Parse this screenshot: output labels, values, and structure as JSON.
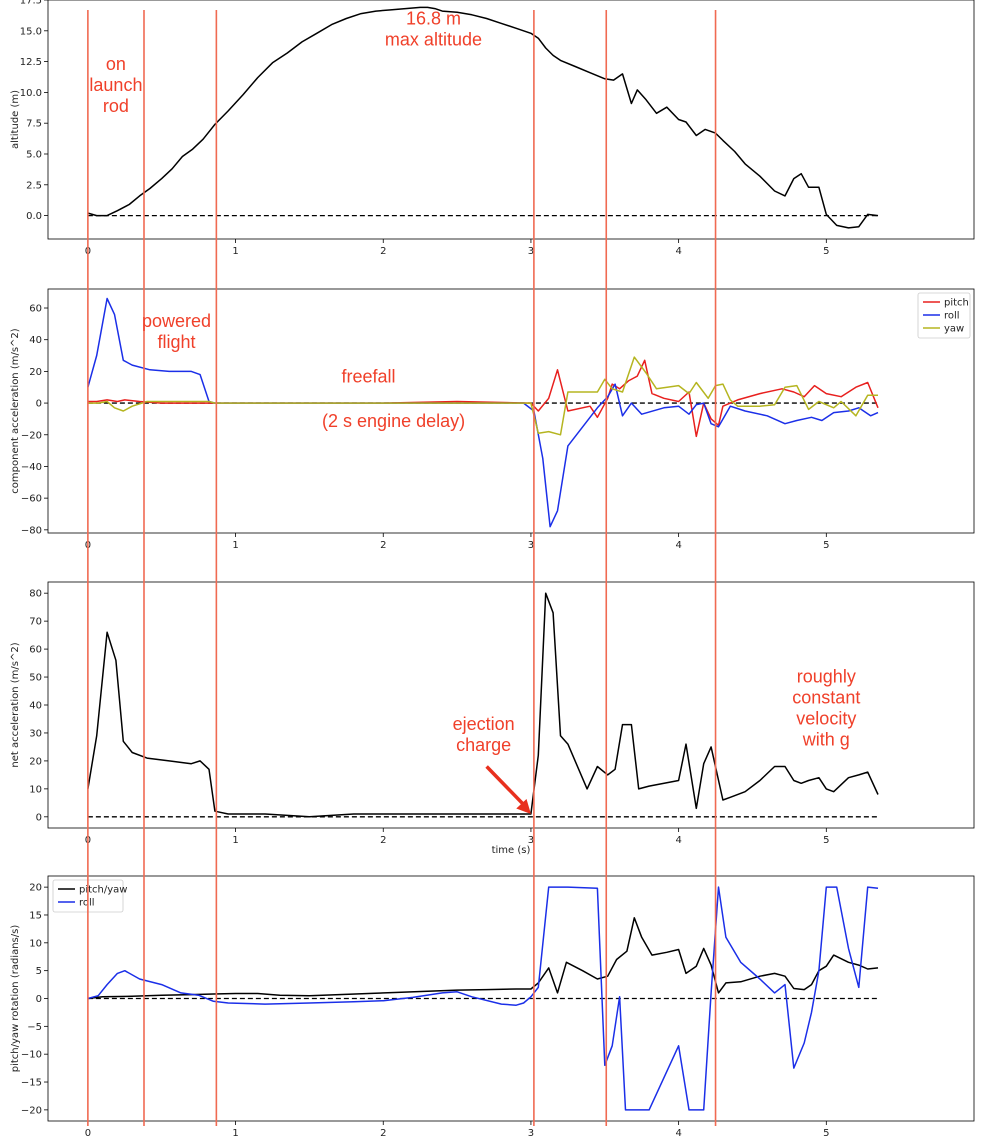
{
  "chart_data": [
    {
      "type": "line",
      "ylabel": "altitude (m)",
      "xlabel": "",
      "xlim": [
        -0.27,
        6.0
      ],
      "ylim": [
        -1.9,
        17.5
      ],
      "xticks": [
        "0",
        "1",
        "2",
        "3",
        "4",
        "5"
      ],
      "yticks": [
        "0.0",
        "2.5",
        "5.0",
        "7.5",
        "10.0",
        "12.5",
        "15.0",
        "17.5"
      ],
      "yticks_values": [
        0,
        2.5,
        5,
        7.5,
        10,
        12.5,
        15,
        17.5
      ],
      "series": [
        {
          "color": "#000000",
          "x": [
            0,
            0.06,
            0.13,
            0.2,
            0.28,
            0.35,
            0.42,
            0.5,
            0.57,
            0.64,
            0.71,
            0.78,
            0.86,
            0.95,
            1.05,
            1.15,
            1.25,
            1.35,
            1.45,
            1.55,
            1.65,
            1.75,
            1.85,
            1.95,
            2.05,
            2.15,
            2.25,
            2.3,
            2.35,
            2.4,
            2.5,
            2.6,
            2.7,
            2.8,
            2.9,
            3.0,
            3.05,
            3.1,
            3.15,
            3.2,
            3.3,
            3.4,
            3.5,
            3.56,
            3.62,
            3.68,
            3.72,
            3.78,
            3.85,
            3.92,
            4.0,
            4.05,
            4.12,
            4.18,
            4.25,
            4.3,
            4.38,
            4.45,
            4.55,
            4.65,
            4.72,
            4.78,
            4.83,
            4.88,
            4.95,
            5.0,
            5.07,
            5.15,
            5.22,
            5.28,
            5.35
          ],
          "y": [
            0.2,
            0.0,
            0.0,
            0.4,
            0.9,
            1.6,
            2.2,
            3.0,
            3.8,
            4.8,
            5.4,
            6.2,
            7.4,
            8.5,
            9.8,
            11.2,
            12.4,
            13.2,
            14.1,
            14.8,
            15.5,
            16.0,
            16.4,
            16.6,
            16.7,
            16.8,
            16.9,
            16.9,
            16.8,
            16.6,
            16.5,
            16.3,
            16.0,
            15.6,
            15.2,
            14.8,
            14.4,
            13.6,
            13.0,
            12.6,
            12.1,
            11.6,
            11.1,
            11.0,
            11.5,
            9.1,
            10.2,
            9.4,
            8.3,
            8.8,
            7.8,
            7.6,
            6.5,
            7.0,
            6.7,
            6.1,
            5.2,
            4.2,
            3.2,
            2.0,
            1.6,
            3.0,
            3.4,
            2.3,
            2.3,
            0.1,
            -0.8,
            -1.0,
            -0.9,
            0.1,
            0.0
          ]
        }
      ],
      "hline_y": 0,
      "annotations": [
        {
          "lines": [
            "on",
            "launch",
            "rod"
          ],
          "x": 0.19,
          "y": 11.8
        },
        {
          "lines": [
            "16.8 m",
            "max altitude"
          ],
          "x": 2.34,
          "y": 15.5
        }
      ]
    },
    {
      "type": "line",
      "ylabel": "component acceleration (m/s^2)",
      "xlabel": "",
      "xlim": [
        -0.27,
        6.0
      ],
      "ylim": [
        -82,
        72
      ],
      "xticks": [
        "0",
        "1",
        "2",
        "3",
        "4",
        "5"
      ],
      "yticks": [
        "−80",
        "−60",
        "−40",
        "−20",
        "0",
        "20",
        "40",
        "60"
      ],
      "yticks_values": [
        -80,
        -60,
        -40,
        -20,
        0,
        20,
        40,
        60
      ],
      "legend": {
        "location": "upper right",
        "entries": [
          "pitch",
          "roll",
          "yaw"
        ]
      },
      "series": [
        {
          "name": "pitch",
          "color": "#e8201e",
          "x": [
            0,
            0.06,
            0.13,
            0.2,
            0.25,
            0.35,
            0.5,
            0.7,
            0.82,
            0.86,
            1.0,
            1.5,
            2.0,
            2.5,
            3.0,
            3.05,
            3.12,
            3.18,
            3.25,
            3.4,
            3.45,
            3.52,
            3.55,
            3.6,
            3.66,
            3.72,
            3.77,
            3.82,
            3.9,
            4.0,
            4.07,
            4.12,
            4.17,
            4.22,
            4.27,
            4.3,
            4.4,
            4.55,
            4.7,
            4.78,
            4.85,
            4.92,
            5.0,
            5.1,
            5.2,
            5.28,
            5.35
          ],
          "y": [
            1,
            1,
            2,
            1,
            2,
            1,
            0,
            0,
            0,
            0,
            0,
            0,
            0,
            1,
            0,
            -5,
            3,
            21,
            -5,
            -2,
            -9,
            3,
            12,
            9,
            14,
            17,
            27,
            6,
            3,
            1,
            7,
            -21,
            0,
            -10,
            -14,
            -2,
            2,
            6,
            9,
            7,
            4,
            11,
            6,
            4,
            10,
            13,
            -3
          ]
        },
        {
          "name": "roll",
          "color": "#1b2fe8",
          "x": [
            0,
            0.06,
            0.13,
            0.18,
            0.24,
            0.3,
            0.42,
            0.55,
            0.7,
            0.76,
            0.82,
            0.86,
            1.0,
            1.5,
            2.0,
            2.5,
            2.95,
            3.02,
            3.08,
            3.13,
            3.18,
            3.25,
            3.45,
            3.52,
            3.57,
            3.62,
            3.68,
            3.75,
            3.9,
            4.0,
            4.07,
            4.12,
            4.17,
            4.22,
            4.27,
            4.35,
            4.45,
            4.6,
            4.72,
            4.8,
            4.9,
            4.97,
            5.05,
            5.15,
            5.22,
            5.3,
            5.35
          ],
          "y": [
            10,
            30,
            66,
            56,
            27,
            24,
            21,
            20,
            20,
            18,
            1,
            0,
            0,
            0,
            0,
            0,
            0,
            -5,
            -35,
            -78,
            -68,
            -27,
            -3,
            4,
            12,
            -8,
            0,
            -7,
            -3,
            -2,
            -7,
            -1,
            0,
            -13,
            -15,
            -2,
            -5,
            -8,
            -13,
            -11,
            -9,
            -11,
            -6,
            -5,
            -3,
            -8,
            -6
          ]
        },
        {
          "name": "yaw",
          "color": "#b5b520",
          "x": [
            0,
            0.07,
            0.13,
            0.18,
            0.24,
            0.3,
            0.4,
            0.55,
            0.7,
            0.82,
            0.86,
            1.0,
            1.5,
            2.0,
            2.5,
            3.0,
            3.05,
            3.12,
            3.2,
            3.25,
            3.45,
            3.5,
            3.55,
            3.62,
            3.7,
            3.78,
            3.85,
            4.0,
            4.07,
            4.12,
            4.2,
            4.25,
            4.3,
            4.35,
            4.4,
            4.55,
            4.65,
            4.72,
            4.8,
            4.88,
            4.95,
            5.05,
            5.1,
            5.2,
            5.28,
            5.35
          ],
          "y": [
            0,
            0,
            1,
            -3,
            -5,
            -2,
            1,
            1,
            1,
            1,
            0,
            0,
            0,
            0,
            0,
            0,
            -19,
            -18,
            -20,
            7,
            7,
            15,
            9,
            7,
            29,
            19,
            9,
            11,
            6,
            13,
            3,
            11,
            12,
            2,
            -2,
            -2,
            -1,
            10,
            11,
            -4,
            1,
            -3,
            1,
            -8,
            5,
            5
          ]
        }
      ],
      "hline_y": 0,
      "annotations": [
        {
          "lines": [
            "powered",
            "flight"
          ],
          "x": 0.6,
          "y": 48
        },
        {
          "lines": [
            "freefall"
          ],
          "x": 1.9,
          "y": 13
        },
        {
          "lines": [
            "(2 s engine delay)"
          ],
          "x": 2.07,
          "y": -15
        }
      ]
    },
    {
      "type": "line",
      "ylabel": "net acceleration (m/s^2)",
      "xlabel": "time (s)",
      "xlim": [
        -0.27,
        6.0
      ],
      "ylim": [
        -4,
        84
      ],
      "xticks": [
        "0",
        "1",
        "2",
        "3",
        "4",
        "5"
      ],
      "yticks": [
        "0",
        "10",
        "20",
        "30",
        "40",
        "50",
        "60",
        "70",
        "80"
      ],
      "yticks_values": [
        0,
        10,
        20,
        30,
        40,
        50,
        60,
        70,
        80
      ],
      "series": [
        {
          "color": "#000000",
          "x": [
            0,
            0.06,
            0.13,
            0.19,
            0.24,
            0.3,
            0.4,
            0.55,
            0.7,
            0.76,
            0.82,
            0.86,
            0.95,
            1.2,
            1.5,
            1.8,
            2.0,
            2.2,
            2.5,
            2.8,
            2.95,
            3.0,
            3.05,
            3.1,
            3.15,
            3.2,
            3.25,
            3.38,
            3.45,
            3.52,
            3.57,
            3.62,
            3.68,
            3.73,
            3.8,
            4.0,
            4.05,
            4.12,
            4.17,
            4.22,
            4.3,
            4.35,
            4.45,
            4.55,
            4.65,
            4.72,
            4.78,
            4.83,
            4.88,
            4.95,
            5.0,
            5.05,
            5.15,
            5.22,
            5.28,
            5.35
          ],
          "y": [
            10,
            29,
            66,
            56,
            27,
            23,
            21,
            20,
            19,
            20,
            17,
            2,
            1,
            1,
            0,
            1,
            1,
            1,
            1,
            1,
            1,
            1,
            22,
            80,
            73,
            29,
            26,
            10,
            18,
            15,
            17,
            33,
            33,
            10,
            11,
            13,
            26,
            3,
            19,
            25,
            6,
            7,
            9,
            13,
            18,
            18,
            13,
            12,
            13,
            14,
            10,
            9,
            14,
            15,
            16,
            8
          ]
        }
      ],
      "hline_y": 0,
      "annotations": [
        {
          "lines": [
            "ejection",
            "charge"
          ],
          "x": 2.68,
          "y": 31
        },
        {
          "lines": [
            "roughly",
            "constant",
            "velocity",
            "with g"
          ],
          "x": 5.0,
          "y": 48
        }
      ],
      "arrow": {
        "from": [
          2.7,
          18
        ],
        "to": [
          3.0,
          1
        ]
      }
    },
    {
      "type": "line",
      "ylabel": "pitch/yaw rotation (radians/s)",
      "xlabel": "",
      "xlim": [
        -0.27,
        6.0
      ],
      "ylim": [
        -22,
        22
      ],
      "xticks": [
        "0",
        "1",
        "2",
        "3",
        "4",
        "5"
      ],
      "yticks": [
        "−20",
        "−15",
        "−10",
        "−5",
        "0",
        "5",
        "10",
        "15",
        "20"
      ],
      "yticks_values": [
        -20,
        -15,
        -10,
        -5,
        0,
        5,
        10,
        15,
        20
      ],
      "legend": {
        "location": "upper left",
        "entries": [
          "pitch/yaw",
          "roll"
        ]
      },
      "series": [
        {
          "name": "pitch/yaw",
          "color": "#000000",
          "x": [
            0,
            0.1,
            0.3,
            0.5,
            0.7,
            0.85,
            1.0,
            1.15,
            1.3,
            1.5,
            1.7,
            1.9,
            2.1,
            2.3,
            2.5,
            2.7,
            2.9,
            3.0,
            3.05,
            3.12,
            3.18,
            3.24,
            3.35,
            3.45,
            3.52,
            3.58,
            3.65,
            3.7,
            3.75,
            3.82,
            3.92,
            4.0,
            4.05,
            4.12,
            4.17,
            4.22,
            4.27,
            4.32,
            4.42,
            4.55,
            4.65,
            4.72,
            4.78,
            4.85,
            4.9,
            4.95,
            5.0,
            5.05,
            5.15,
            5.22,
            5.28,
            5.35
          ],
          "y": [
            0,
            0.3,
            0.4,
            0.6,
            0.7,
            0.8,
            0.9,
            0.9,
            0.6,
            0.5,
            0.7,
            0.9,
            1.1,
            1.3,
            1.5,
            1.6,
            1.7,
            1.7,
            2.8,
            5.5,
            1.0,
            6.5,
            5.0,
            3.5,
            4.0,
            7.0,
            8.5,
            14.5,
            11.0,
            7.8,
            8.3,
            8.8,
            4.5,
            5.8,
            9.0,
            6.0,
            1.0,
            2.8,
            3.0,
            4.0,
            4.5,
            4.0,
            1.8,
            1.6,
            2.5,
            5.0,
            5.8,
            7.8,
            6.5,
            6.0,
            5.3,
            5.5
          ]
        },
        {
          "name": "roll",
          "color": "#1b2fe8",
          "x": [
            0,
            0.07,
            0.13,
            0.2,
            0.25,
            0.35,
            0.5,
            0.63,
            0.75,
            0.85,
            0.95,
            1.2,
            1.5,
            1.8,
            2.0,
            2.2,
            2.4,
            2.5,
            2.6,
            2.8,
            2.9,
            2.95,
            3.0,
            3.05,
            3.12,
            3.25,
            3.45,
            3.5,
            3.55,
            3.6,
            3.64,
            3.7,
            3.8,
            4.0,
            4.07,
            4.17,
            4.22,
            4.27,
            4.32,
            4.42,
            4.55,
            4.65,
            4.72,
            4.78,
            4.85,
            4.9,
            4.95,
            5.0,
            5.07,
            5.15,
            5.22,
            5.28,
            5.35
          ],
          "y": [
            0,
            0.5,
            2.5,
            4.5,
            5,
            3.5,
            2.5,
            1.0,
            0.6,
            -0.5,
            -0.8,
            -1.0,
            -0.8,
            -0.6,
            -0.4,
            0.2,
            1.0,
            1.2,
            0.3,
            -1.0,
            -1.2,
            -0.8,
            0.3,
            2.0,
            20,
            20,
            19.8,
            -12,
            -8.5,
            0.3,
            -20,
            -20,
            -20,
            -8.5,
            -20,
            -20,
            1.0,
            20,
            11,
            6.5,
            3.5,
            1.0,
            2.5,
            -12.5,
            -8,
            -2.5,
            5.0,
            20,
            20,
            9.0,
            2.0,
            20,
            19.8
          ]
        }
      ],
      "hline_y": 0
    }
  ],
  "event_lines_x": [
    0,
    0.38,
    0.87,
    3.02,
    3.51,
    4.25
  ],
  "colors": {
    "event_line": "#f06a52",
    "annotation": "#f0402a"
  }
}
